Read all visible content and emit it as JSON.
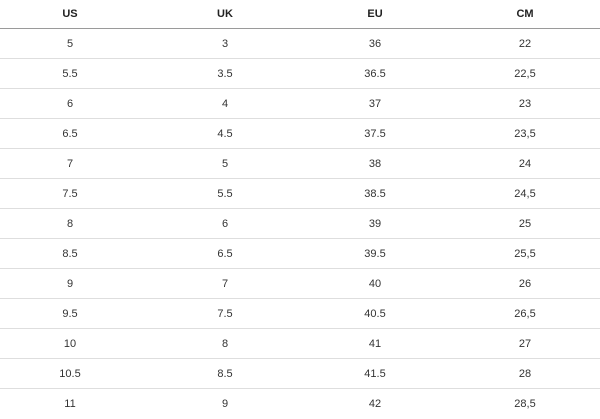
{
  "table": {
    "header": [
      "US",
      "UK",
      "EU",
      "CM"
    ],
    "rows": [
      [
        "5",
        "3",
        "36",
        "22"
      ],
      [
        "5.5",
        "3.5",
        "36.5",
        "22,5"
      ],
      [
        "6",
        "4",
        "37",
        "23"
      ],
      [
        "6.5",
        "4.5",
        "37.5",
        "23,5"
      ],
      [
        "7",
        "5",
        "38",
        "24"
      ],
      [
        "7.5",
        "5.5",
        "38.5",
        "24,5"
      ],
      [
        "8",
        "6",
        "39",
        "25"
      ],
      [
        "8.5",
        "6.5",
        "39.5",
        "25,5"
      ],
      [
        "9",
        "7",
        "40",
        "26"
      ],
      [
        "9.5",
        "7.5",
        "40.5",
        "26,5"
      ],
      [
        "10",
        "8",
        "41",
        "27"
      ],
      [
        "10.5",
        "8.5",
        "41.5",
        "28"
      ],
      [
        "11",
        "9",
        "42",
        "28,5"
      ]
    ]
  }
}
